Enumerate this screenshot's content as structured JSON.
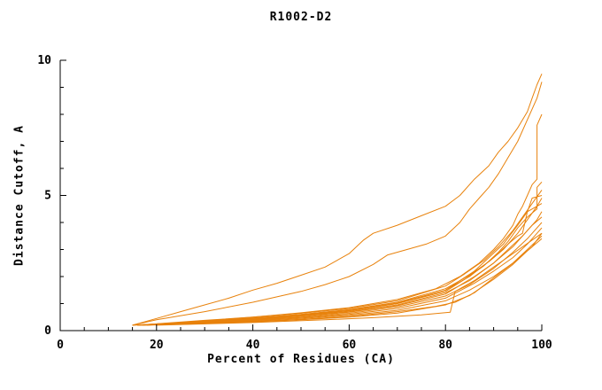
{
  "chart_data": {
    "type": "line",
    "title": "R1002-D2",
    "xlabel": "Percent of Residues (CA)",
    "ylabel": "Distance Cutoff, A",
    "xlim": [
      0,
      100
    ],
    "ylim": [
      0,
      10
    ],
    "x_ticks": [
      0,
      20,
      40,
      60,
      80,
      100
    ],
    "y_ticks": [
      0,
      5,
      10
    ],
    "x_tick_labels": [
      "0",
      "20",
      "40",
      "60",
      "80",
      "100"
    ],
    "y_tick_labels": [
      "0",
      "5",
      "10"
    ],
    "x_minor_step": 5,
    "y_minor_step": 1,
    "grid": false,
    "legend": "none",
    "line_color": "#e8820c",
    "axis_color": "#000000",
    "curves": [
      [
        [
          15,
          0.2
        ],
        [
          20,
          0.45
        ],
        [
          25,
          0.7
        ],
        [
          30,
          0.95
        ],
        [
          35,
          1.2
        ],
        [
          40,
          1.5
        ],
        [
          45,
          1.75
        ],
        [
          50,
          2.05
        ],
        [
          55,
          2.35
        ],
        [
          60,
          2.85
        ],
        [
          63,
          3.35
        ],
        [
          65,
          3.6
        ],
        [
          70,
          3.9
        ],
        [
          75,
          4.25
        ],
        [
          80,
          4.6
        ],
        [
          83,
          5.0
        ],
        [
          86,
          5.6
        ],
        [
          89,
          6.1
        ],
        [
          91,
          6.6
        ],
        [
          93,
          7.0
        ],
        [
          95,
          7.5
        ],
        [
          97,
          8.1
        ],
        [
          98,
          8.6
        ],
        [
          99,
          9.1
        ],
        [
          100,
          9.5
        ]
      ],
      [
        [
          15,
          0.2
        ],
        [
          20,
          0.4
        ],
        [
          30,
          0.7
        ],
        [
          40,
          1.05
        ],
        [
          50,
          1.45
        ],
        [
          55,
          1.7
        ],
        [
          60,
          2.0
        ],
        [
          65,
          2.45
        ],
        [
          68,
          2.8
        ],
        [
          72,
          3.0
        ],
        [
          76,
          3.2
        ],
        [
          80,
          3.5
        ],
        [
          83,
          4.0
        ],
        [
          85,
          4.5
        ],
        [
          87,
          4.9
        ],
        [
          89,
          5.3
        ],
        [
          91,
          5.8
        ],
        [
          93,
          6.4
        ],
        [
          95,
          7.0
        ],
        [
          97,
          7.8
        ],
        [
          99,
          8.6
        ],
        [
          100,
          9.2
        ]
      ],
      [
        [
          16,
          0.2
        ],
        [
          30,
          0.38
        ],
        [
          40,
          0.5
        ],
        [
          50,
          0.66
        ],
        [
          60,
          0.85
        ],
        [
          70,
          1.15
        ],
        [
          78,
          1.55
        ],
        [
          83,
          2.0
        ],
        [
          87,
          2.5
        ],
        [
          90,
          3.0
        ],
        [
          92,
          3.4
        ],
        [
          94,
          3.9
        ],
        [
          95,
          4.3
        ],
        [
          96,
          4.6
        ],
        [
          97,
          5.0
        ],
        [
          98,
          5.4
        ],
        [
          99,
          5.6
        ],
        [
          99,
          7.6
        ],
        [
          100,
          8.0
        ]
      ],
      [
        [
          16,
          0.2
        ],
        [
          30,
          0.36
        ],
        [
          40,
          0.5
        ],
        [
          50,
          0.64
        ],
        [
          60,
          0.82
        ],
        [
          70,
          1.1
        ],
        [
          80,
          1.65
        ],
        [
          84,
          2.1
        ],
        [
          88,
          2.6
        ],
        [
          91,
          3.1
        ],
        [
          94,
          3.7
        ],
        [
          96,
          4.2
        ],
        [
          98,
          4.7
        ],
        [
          100,
          5.2
        ]
      ],
      [
        [
          16,
          0.2
        ],
        [
          30,
          0.35
        ],
        [
          40,
          0.47
        ],
        [
          50,
          0.6
        ],
        [
          60,
          0.78
        ],
        [
          70,
          1.05
        ],
        [
          80,
          1.55
        ],
        [
          85,
          2.05
        ],
        [
          89,
          2.55
        ],
        [
          92,
          3.0
        ],
        [
          95,
          3.6
        ],
        [
          97,
          4.1
        ],
        [
          99,
          4.6
        ],
        [
          100,
          4.9
        ]
      ],
      [
        [
          16,
          0.2
        ],
        [
          30,
          0.34
        ],
        [
          40,
          0.46
        ],
        [
          50,
          0.6
        ],
        [
          60,
          0.76
        ],
        [
          70,
          1.0
        ],
        [
          80,
          1.5
        ],
        [
          85,
          2.0
        ],
        [
          90,
          2.7
        ],
        [
          93,
          3.2
        ],
        [
          95,
          3.5
        ],
        [
          96,
          3.6
        ],
        [
          97,
          4.4
        ],
        [
          100,
          4.7
        ]
      ],
      [
        [
          15,
          0.2
        ],
        [
          30,
          0.32
        ],
        [
          40,
          0.42
        ],
        [
          50,
          0.55
        ],
        [
          60,
          0.7
        ],
        [
          70,
          0.95
        ],
        [
          80,
          1.4
        ],
        [
          85,
          1.85
        ],
        [
          90,
          2.5
        ],
        [
          94,
          3.1
        ],
        [
          97,
          3.7
        ],
        [
          99,
          4.1
        ],
        [
          100,
          4.4
        ]
      ],
      [
        [
          16,
          0.2
        ],
        [
          30,
          0.31
        ],
        [
          40,
          0.41
        ],
        [
          50,
          0.53
        ],
        [
          60,
          0.68
        ],
        [
          70,
          0.92
        ],
        [
          80,
          1.35
        ],
        [
          86,
          2.0
        ],
        [
          90,
          2.5
        ],
        [
          93,
          3.0
        ],
        [
          96,
          3.5
        ],
        [
          98,
          3.9
        ],
        [
          100,
          4.2
        ]
      ],
      [
        [
          17,
          0.2
        ],
        [
          30,
          0.3
        ],
        [
          40,
          0.4
        ],
        [
          50,
          0.5
        ],
        [
          60,
          0.64
        ],
        [
          70,
          0.88
        ],
        [
          80,
          1.28
        ],
        [
          85,
          1.7
        ],
        [
          90,
          2.3
        ],
        [
          94,
          2.9
        ],
        [
          97,
          3.4
        ],
        [
          100,
          4.0
        ]
      ],
      [
        [
          16,
          0.2
        ],
        [
          30,
          0.3
        ],
        [
          40,
          0.38
        ],
        [
          50,
          0.48
        ],
        [
          60,
          0.6
        ],
        [
          70,
          0.82
        ],
        [
          80,
          1.2
        ],
        [
          86,
          1.75
        ],
        [
          90,
          2.2
        ],
        [
          94,
          2.7
        ],
        [
          97,
          3.2
        ],
        [
          100,
          3.8
        ]
      ],
      [
        [
          17,
          0.2
        ],
        [
          30,
          0.28
        ],
        [
          40,
          0.36
        ],
        [
          50,
          0.45
        ],
        [
          60,
          0.56
        ],
        [
          70,
          0.75
        ],
        [
          80,
          1.1
        ],
        [
          85,
          1.5
        ],
        [
          90,
          2.0
        ],
        [
          94,
          2.5
        ],
        [
          98,
          3.1
        ],
        [
          100,
          3.6
        ]
      ],
      [
        [
          17,
          0.2
        ],
        [
          30,
          0.27
        ],
        [
          40,
          0.34
        ],
        [
          50,
          0.42
        ],
        [
          60,
          0.52
        ],
        [
          70,
          0.7
        ],
        [
          78,
          0.9
        ],
        [
          82,
          1.05
        ],
        [
          86,
          1.4
        ],
        [
          90,
          1.95
        ],
        [
          94,
          2.5
        ],
        [
          97,
          3.0
        ],
        [
          100,
          3.5
        ]
      ],
      [
        [
          20,
          0.2
        ],
        [
          40,
          0.3
        ],
        [
          55,
          0.4
        ],
        [
          65,
          0.48
        ],
        [
          75,
          0.58
        ],
        [
          81,
          0.68
        ],
        [
          82,
          1.45
        ],
        [
          86,
          1.85
        ],
        [
          90,
          2.35
        ],
        [
          94,
          2.85
        ],
        [
          100,
          3.6
        ]
      ],
      [
        [
          18,
          0.2
        ],
        [
          30,
          0.26
        ],
        [
          40,
          0.32
        ],
        [
          50,
          0.4
        ],
        [
          60,
          0.5
        ],
        [
          70,
          0.65
        ],
        [
          80,
          0.95
        ],
        [
          85,
          1.3
        ],
        [
          90,
          1.9
        ],
        [
          94,
          2.45
        ],
        [
          97,
          2.95
        ],
        [
          100,
          3.4
        ]
      ],
      [
        [
          16,
          0.2
        ],
        [
          30,
          0.33
        ],
        [
          40,
          0.44
        ],
        [
          50,
          0.57
        ],
        [
          60,
          0.73
        ],
        [
          70,
          1.0
        ],
        [
          80,
          1.45
        ],
        [
          84,
          1.9
        ],
        [
          88,
          2.4
        ],
        [
          91,
          2.9
        ],
        [
          93,
          3.3
        ],
        [
          95,
          3.8
        ],
        [
          97,
          4.2
        ],
        [
          99,
          4.5
        ],
        [
          99,
          5.3
        ],
        [
          100,
          5.5
        ]
      ],
      [
        [
          15,
          0.2
        ],
        [
          30,
          0.34
        ],
        [
          40,
          0.45
        ],
        [
          50,
          0.58
        ],
        [
          60,
          0.75
        ],
        [
          70,
          1.02
        ],
        [
          80,
          1.5
        ],
        [
          86,
          2.2
        ],
        [
          89,
          2.7
        ],
        [
          92,
          3.2
        ],
        [
          95,
          3.9
        ],
        [
          97,
          4.4
        ],
        [
          98,
          4.9
        ],
        [
          100,
          5.0
        ]
      ]
    ]
  }
}
